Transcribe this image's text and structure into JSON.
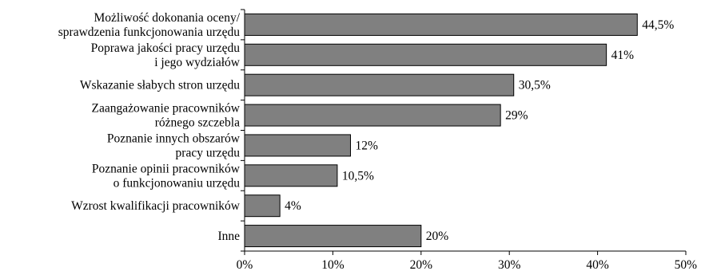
{
  "chart_data": {
    "type": "bar",
    "orientation": "horizontal",
    "categories": [
      [
        "Możliwość dokonania oceny/",
        "sprawdzenia funkcjonowania urzędu"
      ],
      [
        "Poprawa jakości pracy urzędu",
        "i jego wydziałów"
      ],
      [
        "Wskazanie słabych stron urzędu"
      ],
      [
        "Zaangażowanie pracowników",
        "różnego szczebla"
      ],
      [
        "Poznanie innych obszarów",
        "pracy urzędu"
      ],
      [
        "Poznanie opinii pracowników",
        "o funkcjonowaniu urzędu"
      ],
      [
        "Wzrost kwalifikacji pracowników"
      ],
      [
        "Inne"
      ]
    ],
    "values": [
      44.5,
      41,
      30.5,
      29,
      12,
      10.5,
      4,
      20
    ],
    "value_labels": [
      "44,5%",
      "41%",
      "30,5%",
      "29%",
      "12%",
      "10,5%",
      "4%",
      "20%"
    ],
    "xlim": [
      0,
      50
    ],
    "ticks": [
      0,
      10,
      20,
      30,
      40,
      50
    ],
    "tick_labels": [
      "0%",
      "10%",
      "20%",
      "30%",
      "40%",
      "50%"
    ],
    "bar_color": "#808080",
    "bar_edge_color": "#000000",
    "grid": false,
    "legend": "none"
  }
}
